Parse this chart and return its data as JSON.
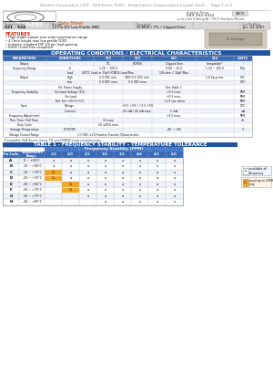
{
  "title_line": "Oscilent Corporation | 521 - 524 Series TCXO - Temperature Compensated Crystal Oscill...   Page 1 of 2",
  "company": "OSCILENT",
  "doc_type": "Data Sheet",
  "series_number": "521 - 524",
  "package": "14 Pin DIP Low Profile SMD",
  "description": "HCMOS / TTL / Clipped Sine",
  "last_modified": "Jan. 01 2007",
  "features_title": "FEATURES",
  "features": [
    "High stable output over wide temperature range",
    "4.7mm height max low profile TCXO",
    "Industry standard DIP 1/4 pin lead spacing",
    "RoHS / Lead Free compliant"
  ],
  "section_title": "OPERATING CONDITIONS / ELECTRICAL CHARACTERISTICS",
  "op_header": [
    "PARAMETERS",
    "CONDITIONS",
    "521",
    "522",
    "523",
    "524",
    "UNITS"
  ],
  "op_rows": [
    [
      "Output",
      "-",
      "TTL",
      "HCMOS",
      "Clipped Sine",
      "Compatible*",
      "-"
    ],
    [
      "Frequency Range",
      "fo",
      "1.20 ~ 100.0",
      "",
      "9.60 ~ 25.0",
      "1.20 ~ 100.0",
      "MHz"
    ],
    [
      "",
      "Load",
      "4STTL Load or 15pF HCMOS Load Max.",
      "",
      "10k ohm // 10pF Max.",
      "",
      "-"
    ],
    [
      "Output",
      "High",
      "2.4 VDC min.",
      "VDD-0.5 VDC min.",
      "",
      "1.8 Vp-p min.",
      "VDC"
    ],
    [
      "",
      "Low",
      "0.4 VDC max.",
      "0.5 VDC max.",
      "",
      "",
      "VDC"
    ],
    [
      "",
      "Vit. Power Supply",
      "",
      "",
      "See Table 1",
      "",
      "-"
    ],
    [
      "Frequency Stability",
      "Vin Input Voltage (5%)",
      "",
      "",
      "+0.5 max.",
      "",
      "PPM"
    ],
    [
      "",
      "Vin Load",
      "",
      "",
      "+0.5 max.",
      "",
      "PPM"
    ],
    [
      "",
      "Ref. Set +25°C/+5°C",
      "",
      "",
      "+1.0 see notes",
      "",
      "PPM"
    ],
    [
      "Input",
      "Voltage",
      "",
      "+0.5 +5% / +1.5 +5%",
      "",
      "",
      "VDC"
    ],
    [
      "",
      "(Current)",
      "",
      "20 mA / 40 mA max.",
      "5 mA",
      "",
      "mA"
    ],
    [
      "Frequency Adjustment",
      "-",
      "",
      "",
      "+3.0 max.",
      "",
      "PPM"
    ],
    [
      "Rise Time / Fall Time",
      "-",
      "10 max.",
      "",
      "",
      "",
      "nS"
    ],
    [
      "Duty Cycle",
      "-",
      "50 ±45% max.",
      "",
      "",
      "",
      "-"
    ],
    [
      "Storage Temperature",
      "CT(STOR)",
      "",
      "",
      "-40 ~ +85",
      "",
      "°C"
    ],
    [
      "Voltage Control Range",
      "-",
      "3.3 VDC ±1.0 Positive Transfer Characteristic",
      "",
      "",
      "",
      "-"
    ]
  ],
  "compat_note": "*Compatible (524 Series) meets TTL and HCMOS mode simultaneously",
  "table1_title": "TABLE 1 - FREQUENCY STABILITY - TEMPERATURE TOLERANCE",
  "table1_col_header": [
    "Pin Code",
    "Temperature\nRange",
    "1.5",
    "2.0",
    "2.5",
    "3.0",
    "3.5",
    "4.0",
    "4.5",
    "5.0"
  ],
  "table1_freq_header": "Frequency Stability (PPM)",
  "table1_rows": [
    [
      "A",
      "0 ~ +50°C",
      "a",
      "a",
      "a",
      "a",
      "a",
      "a",
      "a",
      "a"
    ],
    [
      "B",
      "-10 ~ +60°C",
      "a",
      "a",
      "a",
      "a",
      "a",
      "a",
      "a",
      "a"
    ],
    [
      "C",
      "-10 ~ +70°C",
      "Oi",
      "a",
      "a",
      "a",
      "a",
      "a",
      "a",
      "a"
    ],
    [
      "D",
      "-20 ~ +70°C",
      "Oi",
      "a",
      "a",
      "a",
      "a",
      "a",
      "a",
      "a"
    ],
    [
      "E",
      "-30 ~ +60°C",
      "",
      "Oi",
      "a",
      "a",
      "a",
      "a",
      "a",
      "a"
    ],
    [
      "F",
      "-30 ~ +70°C",
      "",
      "Oi",
      "a",
      "a",
      "a",
      "a",
      "a",
      "a"
    ],
    [
      "G",
      "-30 ~ +75°C",
      "",
      "",
      "a",
      "a",
      "a",
      "a",
      "a",
      "a"
    ],
    [
      "H",
      "-40 ~ +85°C",
      "",
      "",
      "",
      "a",
      "a",
      "a",
      "a",
      "a"
    ]
  ],
  "legend_oi_color": "#f5a623",
  "legend_a_text": "available all\nFrequency",
  "legend_oi_text": "avail up to 26MHz\nonly",
  "bg_color": "#ffffff",
  "text_color": "#000000",
  "title_color": "#888888",
  "header_blue": "#2255a0",
  "header_blue2": "#3a6ab8",
  "row_alt": "#eef2fa",
  "grid_color": "#cccccc"
}
